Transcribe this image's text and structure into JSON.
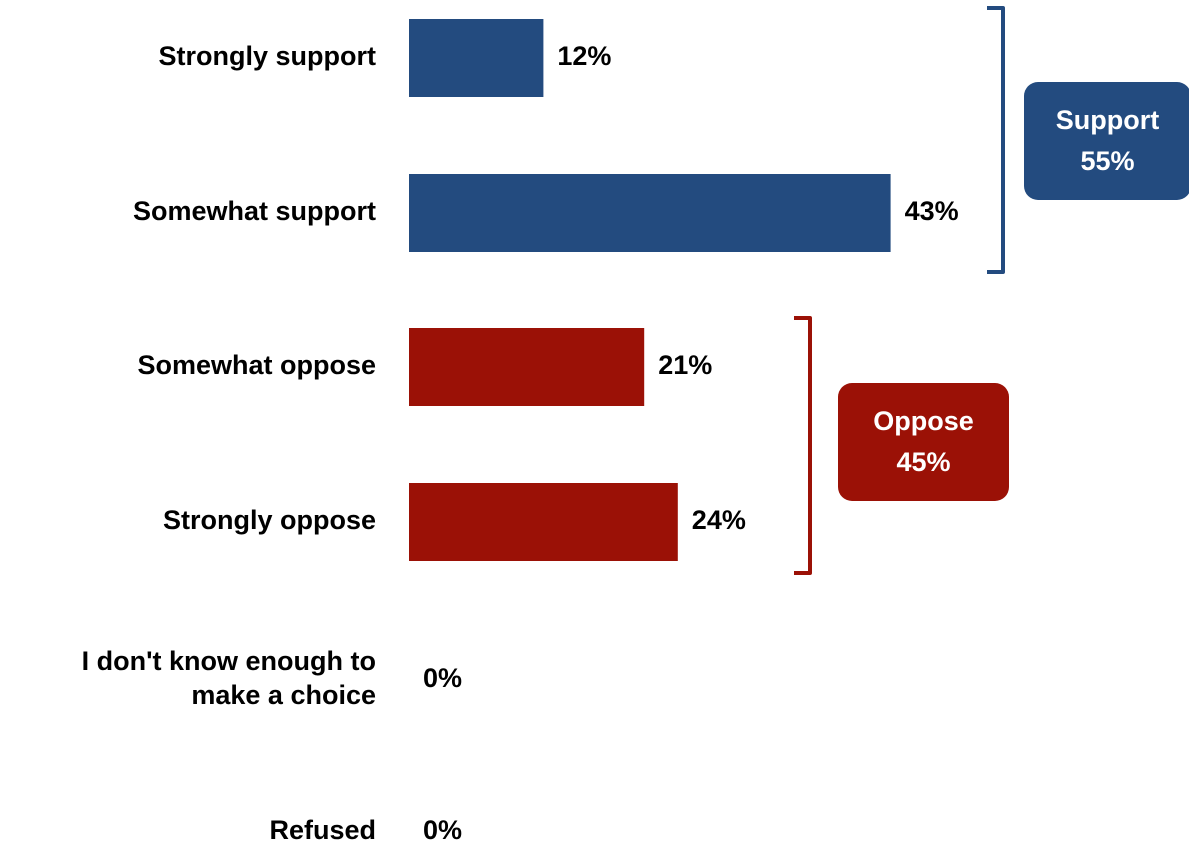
{
  "chart_data": {
    "type": "bar",
    "orientation": "horizontal",
    "categories": [
      "Strongly support",
      "Somewhat support",
      "Somewhat oppose",
      "Strongly oppose",
      "I don't know enough to make a choice",
      "Refused"
    ],
    "category_lines": [
      [
        "Strongly support"
      ],
      [
        "Somewhat support"
      ],
      [
        "Somewhat oppose"
      ],
      [
        "Strongly oppose"
      ],
      [
        "I don't know enough to",
        "make a choice"
      ],
      [
        "Refused"
      ]
    ],
    "values": [
      12,
      43,
      21,
      24,
      0,
      0
    ],
    "value_labels": [
      "12%",
      "43%",
      "21%",
      "24%",
      "0%",
      "0%"
    ],
    "bar_colors": [
      "#234b7f",
      "#234b7f",
      "#9b1106",
      "#9b1106",
      "#9b1106",
      "#9b1106"
    ],
    "xlim": [
      0,
      50
    ],
    "grid": false,
    "groups": [
      {
        "label": "Support",
        "value": "55%",
        "color": "#234b7f",
        "from_index": 0,
        "to_index": 1
      },
      {
        "label": "Oppose",
        "value": "45%",
        "color": "#9b1106",
        "from_index": 2,
        "to_index": 3
      }
    ]
  }
}
